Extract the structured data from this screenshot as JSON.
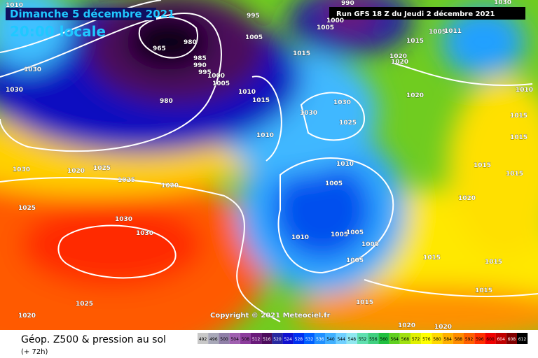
{
  "header": {
    "date": "Dimanche 5 décembre 2021",
    "local_time": "20:00 locale",
    "run": "Run GFS 18 Z du Jeudi 2 décembre 2021"
  },
  "copyright": "Copyright © 2021 Meteociel.fr",
  "footer": {
    "title": "Géop. Z500 & pression au sol",
    "lead": "(+ 72h)"
  },
  "isobar_labels": [
    "1010",
    "1030",
    "990",
    "1000",
    "1005",
    "995",
    "1005",
    "965",
    "980",
    "985",
    "990",
    "995",
    "1000",
    "1005",
    "980",
    "1015",
    "1020",
    "1020",
    "1015",
    "1005",
    "1011",
    "1030",
    "1030",
    "1010",
    "1015",
    "1030",
    "1030",
    "1025",
    "1010",
    "1020",
    "1020",
    "1025",
    "1025",
    "1020",
    "1030",
    "1025",
    "1030",
    "1030",
    "1010",
    "1005",
    "1005",
    "1005",
    "1010",
    "1005",
    "1005",
    "1015",
    "1020",
    "1015",
    "1015",
    "1015",
    "1015",
    "1015",
    "1020",
    "1020",
    "1025",
    "1020",
    "1010",
    "1015",
    "1015"
  ],
  "scale": {
    "values": [
      492,
      496,
      500,
      504,
      508,
      512,
      516,
      520,
      524,
      528,
      532,
      536,
      540,
      544,
      548,
      552,
      556,
      560,
      564,
      568,
      572,
      576,
      580,
      584,
      588,
      592,
      596,
      600,
      604,
      608,
      612
    ],
    "colors": [
      "#c8c8c8",
      "#a8a8b8",
      "#9080a8",
      "#a060b0",
      "#8c3c9c",
      "#6a1a7a",
      "#4c0b5c",
      "#2828a0",
      "#1010d0",
      "#0030f0",
      "#0060ff",
      "#2090ff",
      "#40b0ff",
      "#70d0ff",
      "#90e8f0",
      "#60e0b0",
      "#40d080",
      "#20c040",
      "#60d020",
      "#a0e010",
      "#e0f000",
      "#ffff00",
      "#ffd800",
      "#ffb000",
      "#ff8c00",
      "#ff6000",
      "#ff3000",
      "#f00000",
      "#c00000",
      "#800000",
      "#000000"
    ]
  }
}
